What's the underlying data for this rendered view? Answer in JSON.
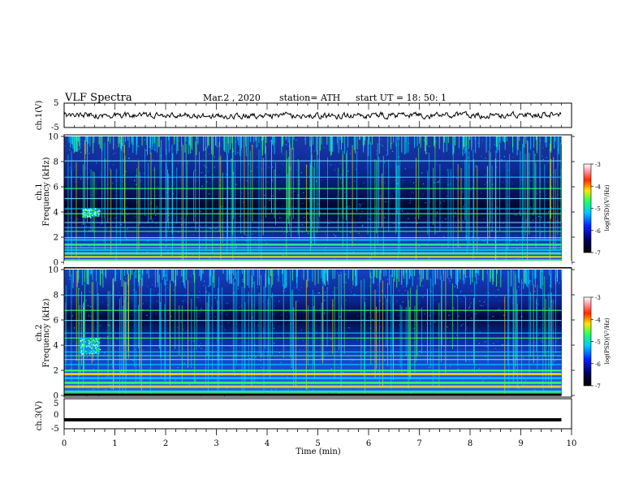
{
  "header": {
    "title": "VLF  Spectra",
    "date": "Mar.2  , 2020",
    "station": "station= ATH",
    "start": "start  UT  =    18: 50: 1"
  },
  "colors": {
    "spectro_bg": "#000a33",
    "band_blue": "#1d3cff",
    "band_cyan": "#00d7ff",
    "band_green": "#3bff6a",
    "band_yellow": "#ffe600",
    "band_red": "#ff1a1a",
    "gap_white": "#ffffff"
  },
  "chart_data": [
    {
      "type": "line",
      "panel": "ch1-waveform",
      "ylabel": "ch.1(V)",
      "ylim": [
        -5,
        5
      ],
      "yticks": [
        "5",
        "-5"
      ],
      "xlim": [
        0,
        10
      ],
      "x_end": 9.8,
      "series": [
        {
          "mean": 0.0,
          "amplitude_approx": 1.2
        }
      ]
    },
    {
      "type": "heatmap",
      "panel": "ch1-spectrogram",
      "ylabel_top": "ch.1",
      "ylabel": "Frequency  (kHz)",
      "ylim": [
        0,
        10
      ],
      "yticks": [
        "0",
        "2",
        "4",
        "6",
        "8",
        "10"
      ],
      "xlim": [
        0,
        10
      ],
      "x_end": 9.8,
      "colorbar": {
        "label": "log(PSD)(V²/Hz)",
        "range": [
          -7,
          -3
        ],
        "ticks": [
          "-3",
          "-4",
          "-5",
          "-6",
          "-7"
        ]
      },
      "burst": {
        "t_range": [
          0.35,
          0.7
        ],
        "f_range": [
          3.6,
          4.3
        ]
      },
      "lines_khz": [
        0.5,
        0.8,
        1.2,
        1.5,
        2.0,
        2.5,
        2.8,
        3.2,
        3.9,
        4.3,
        5.1,
        5.9,
        6.8,
        8.1
      ]
    },
    {
      "type": "heatmap",
      "panel": "ch2-spectrogram",
      "ylabel_top": "ch.2",
      "ylabel": "Frequency  (kHz)",
      "ylim": [
        0,
        10
      ],
      "yticks": [
        "0",
        "2",
        "4",
        "6",
        "8",
        "10"
      ],
      "xlim": [
        0,
        10
      ],
      "x_end": 9.8,
      "colorbar": {
        "label": "log(PSD)(V²/Hz)",
        "range": [
          -7,
          -3
        ],
        "ticks": [
          "-3",
          "-4",
          "-5",
          "-6",
          "-7"
        ]
      },
      "burst": {
        "t_range": [
          0.3,
          0.7
        ],
        "f_range": [
          3.3,
          4.6
        ]
      },
      "lines_khz": [
        0.4,
        0.8,
        1.1,
        1.4,
        1.8,
        2.0,
        2.5,
        2.9,
        3.2,
        3.5,
        4.0,
        4.6,
        5.0,
        6.0,
        6.8,
        8.0
      ]
    },
    {
      "type": "line",
      "panel": "ch3-waveform",
      "ylabel": "ch.3(V)",
      "ylim": [
        -5,
        5
      ],
      "yticks": [
        "5",
        "0",
        "-5"
      ],
      "xlim": [
        0,
        10
      ],
      "x_end": 9.8,
      "series": [
        {
          "constant": -2.0
        }
      ],
      "xlabel": "Time  (min)",
      "xticks": [
        "0",
        "1",
        "2",
        "3",
        "4",
        "5",
        "6",
        "7",
        "8",
        "9",
        "10"
      ]
    }
  ]
}
